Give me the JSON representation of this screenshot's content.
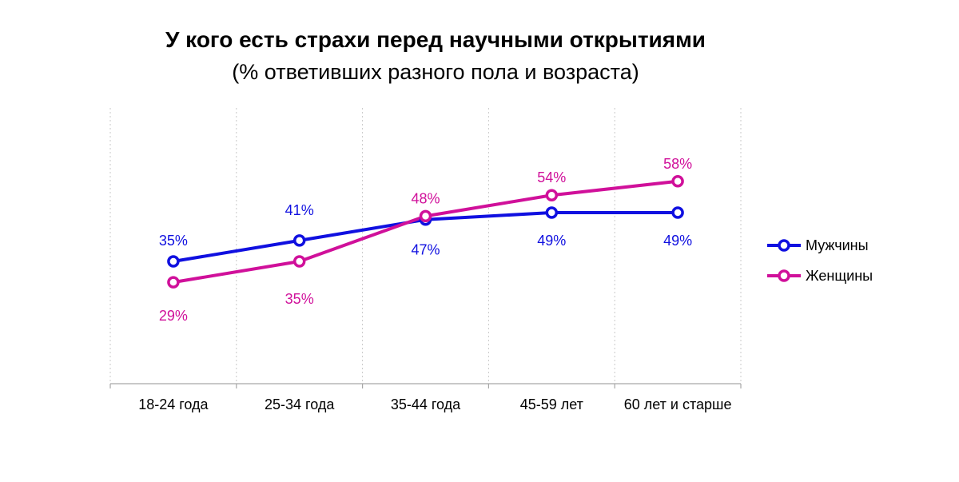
{
  "chart_data": {
    "type": "line",
    "title": "У кого есть страхи перед научными открытиями",
    "subtitle": "(% ответивших разного пола и возраста)",
    "categories": [
      "18-24 года",
      "25-34 года",
      "35-44 года",
      "45-59 лет",
      "60 лет и старше"
    ],
    "series": [
      {
        "name": "Мужчины",
        "values": [
          35,
          41,
          47,
          49,
          49
        ],
        "labels": [
          "35%",
          "41%",
          "47%",
          "49%",
          "49%"
        ],
        "color": "#1010e0"
      },
      {
        "name": "Женщины",
        "values": [
          29,
          35,
          48,
          54,
          58
        ],
        "labels": [
          "29%",
          "35%",
          "48%",
          "54%",
          "58%"
        ],
        "color": "#d0109a"
      }
    ],
    "ylim": [
      0,
      100
    ],
    "grid": "vertical-dotted",
    "legend": "right"
  }
}
